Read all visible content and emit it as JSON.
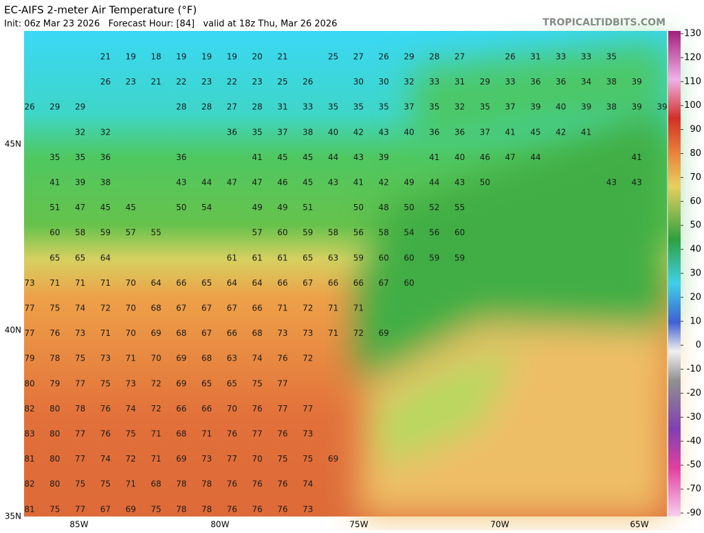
{
  "header": {
    "title": "EC-AIFS 2-meter Air Temperature (°F)",
    "subtitle": "Init: 06z Mar 23 2026   Forecast Hour: [84]   valid at 18z Thu, Mar 26 2026",
    "watermark": "TROPICALTIDBITS.COM"
  },
  "map": {
    "latitude_labels": [
      "45N",
      "40N",
      "35N"
    ],
    "longitude_labels": [
      "85W",
      "80W",
      "75W",
      "70W",
      "65W"
    ],
    "temperatures": [
      [
        null,
        null,
        null,
        21,
        19,
        18,
        19,
        19,
        19,
        20,
        21,
        null,
        25,
        27,
        26,
        29,
        28,
        27,
        null,
        26,
        31,
        33,
        33,
        35,
        null,
        null
      ],
      [
        null,
        null,
        null,
        26,
        23,
        21,
        22,
        23,
        22,
        23,
        25,
        26,
        null,
        30,
        30,
        32,
        33,
        31,
        29,
        33,
        36,
        36,
        34,
        38,
        39,
        null
      ],
      [
        26,
        29,
        29,
        null,
        null,
        null,
        28,
        28,
        27,
        28,
        31,
        33,
        35,
        35,
        35,
        37,
        35,
        32,
        35,
        37,
        39,
        40,
        39,
        38,
        39,
        39
      ],
      [
        null,
        null,
        32,
        32,
        null,
        null,
        null,
        null,
        36,
        35,
        37,
        38,
        40,
        42,
        43,
        40,
        36,
        36,
        37,
        41,
        45,
        42,
        41,
        null,
        null,
        null
      ],
      [
        null,
        35,
        35,
        36,
        null,
        null,
        36,
        null,
        null,
        41,
        45,
        45,
        44,
        43,
        39,
        null,
        41,
        40,
        46,
        47,
        44,
        null,
        null,
        null,
        41,
        null
      ],
      [
        null,
        41,
        39,
        38,
        null,
        null,
        43,
        44,
        47,
        47,
        46,
        45,
        43,
        41,
        42,
        49,
        44,
        43,
        50,
        null,
        null,
        null,
        null,
        43,
        43,
        null
      ],
      [
        null,
        51,
        47,
        45,
        45,
        null,
        50,
        54,
        null,
        49,
        49,
        51,
        null,
        50,
        48,
        50,
        52,
        55,
        null,
        null,
        null,
        null,
        null,
        null,
        null,
        null
      ],
      [
        null,
        60,
        58,
        59,
        57,
        55,
        null,
        null,
        null,
        57,
        60,
        59,
        58,
        56,
        58,
        54,
        56,
        60,
        null,
        null,
        null,
        null,
        null,
        null,
        null,
        null
      ],
      [
        null,
        65,
        65,
        64,
        null,
        null,
        null,
        null,
        61,
        61,
        61,
        65,
        63,
        59,
        60,
        60,
        59,
        59,
        null,
        null,
        null,
        null,
        null,
        null,
        null,
        null
      ],
      [
        73,
        71,
        71,
        71,
        70,
        64,
        66,
        65,
        64,
        64,
        66,
        67,
        66,
        66,
        67,
        60,
        null,
        null,
        null,
        null,
        null,
        null,
        null,
        null,
        null,
        null
      ],
      [
        77,
        75,
        74,
        72,
        70,
        68,
        67,
        67,
        67,
        66,
        71,
        72,
        71,
        71,
        null,
        null,
        null,
        null,
        null,
        null,
        null,
        null,
        null,
        null,
        null,
        null
      ],
      [
        77,
        76,
        73,
        71,
        70,
        69,
        68,
        67,
        66,
        68,
        73,
        73,
        71,
        72,
        69,
        null,
        null,
        null,
        null,
        null,
        null,
        null,
        null,
        null,
        null,
        null
      ],
      [
        79,
        78,
        75,
        73,
        71,
        70,
        69,
        68,
        63,
        74,
        76,
        72,
        null,
        null,
        null,
        null,
        null,
        null,
        null,
        null,
        null,
        null,
        null,
        null,
        null,
        null
      ],
      [
        80,
        79,
        77,
        75,
        73,
        72,
        69,
        65,
        65,
        75,
        77,
        null,
        null,
        null,
        null,
        null,
        null,
        null,
        null,
        null,
        null,
        null,
        null,
        null,
        null,
        null
      ],
      [
        82,
        80,
        78,
        76,
        74,
        72,
        66,
        66,
        70,
        76,
        77,
        77,
        null,
        null,
        null,
        null,
        null,
        null,
        null,
        null,
        null,
        null,
        null,
        null,
        null,
        null
      ],
      [
        83,
        80,
        77,
        76,
        75,
        71,
        68,
        71,
        76,
        77,
        76,
        73,
        null,
        null,
        null,
        null,
        null,
        null,
        null,
        null,
        null,
        null,
        null,
        null,
        null,
        null
      ],
      [
        81,
        80,
        77,
        74,
        72,
        71,
        69,
        73,
        77,
        70,
        75,
        75,
        69,
        null,
        null,
        null,
        null,
        null,
        null,
        null,
        null,
        null,
        null,
        null,
        null,
        null
      ],
      [
        82,
        80,
        75,
        75,
        71,
        68,
        78,
        78,
        76,
        76,
        76,
        74,
        null,
        null,
        null,
        null,
        null,
        null,
        null,
        null,
        null,
        null,
        null,
        null,
        null,
        null
      ],
      [
        81,
        75,
        77,
        67,
        69,
        75,
        78,
        78,
        76,
        76,
        76,
        73,
        null,
        null,
        null,
        null,
        null,
        null,
        null,
        null,
        null,
        null,
        null,
        null,
        null,
        null
      ]
    ]
  },
  "colorbar": {
    "ticks": [
      130,
      120,
      110,
      100,
      90,
      80,
      70,
      60,
      50,
      40,
      30,
      20,
      10,
      0,
      -10,
      -20,
      -30,
      -40,
      -50,
      -70,
      -90
    ]
  }
}
